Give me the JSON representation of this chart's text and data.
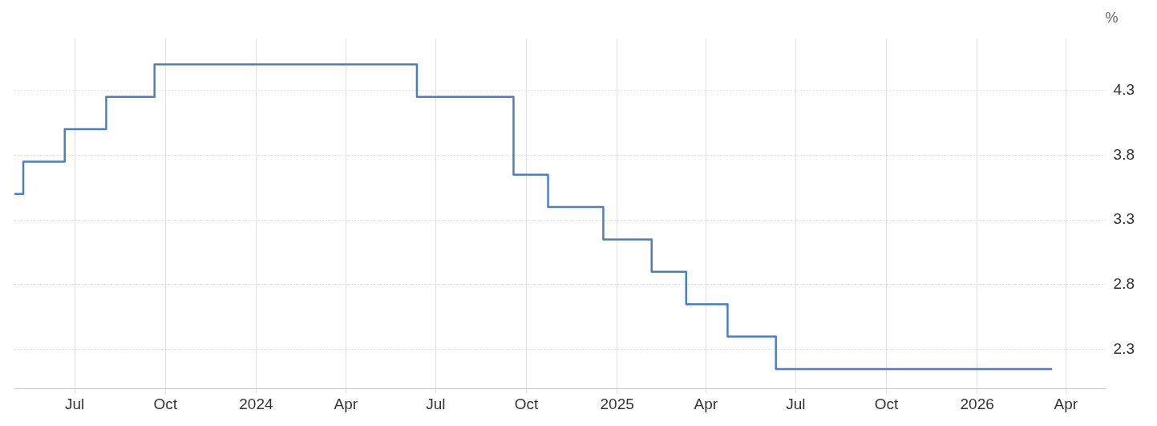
{
  "chart_data": {
    "type": "step",
    "ylabel": "%",
    "x": [
      "2023-05-01",
      "2023-05-10",
      "2023-06-21",
      "2023-08-02",
      "2023-09-20",
      "2024-06-12",
      "2024-09-18",
      "2024-10-23",
      "2024-12-18",
      "2025-02-05",
      "2025-03-12",
      "2025-04-23",
      "2025-06-11",
      "2026-03-18"
    ],
    "series": [
      {
        "color": "#4b7fc0",
        "values": [
          3.5,
          3.75,
          4.0,
          4.25,
          4.5,
          4.25,
          3.65,
          3.4,
          3.15,
          2.9,
          2.65,
          2.4,
          2.15,
          2.15
        ]
      }
    ],
    "xlim": [
      "2023-05-01",
      "2026-05-11"
    ],
    "xticks": [
      {
        "value": "2023-07-01",
        "label": "Jul"
      },
      {
        "value": "2023-10-01",
        "label": "Oct"
      },
      {
        "value": "2024-01-01",
        "label": "2024"
      },
      {
        "value": "2024-04-01",
        "label": "Apr"
      },
      {
        "value": "2024-07-01",
        "label": "Jul"
      },
      {
        "value": "2024-10-01",
        "label": "Oct"
      },
      {
        "value": "2025-01-01",
        "label": "2025"
      },
      {
        "value": "2025-04-01",
        "label": "Apr"
      },
      {
        "value": "2025-07-01",
        "label": "Jul"
      },
      {
        "value": "2025-10-01",
        "label": "Oct"
      },
      {
        "value": "2026-01-01",
        "label": "2026"
      },
      {
        "value": "2026-04-01",
        "label": "Apr"
      }
    ],
    "ylim": [
      2.0,
      4.7
    ],
    "yticks": [
      2.3,
      2.8,
      3.3,
      3.8,
      4.3
    ],
    "grid": true,
    "legend": false,
    "marker": "none",
    "line_style": "solid"
  }
}
